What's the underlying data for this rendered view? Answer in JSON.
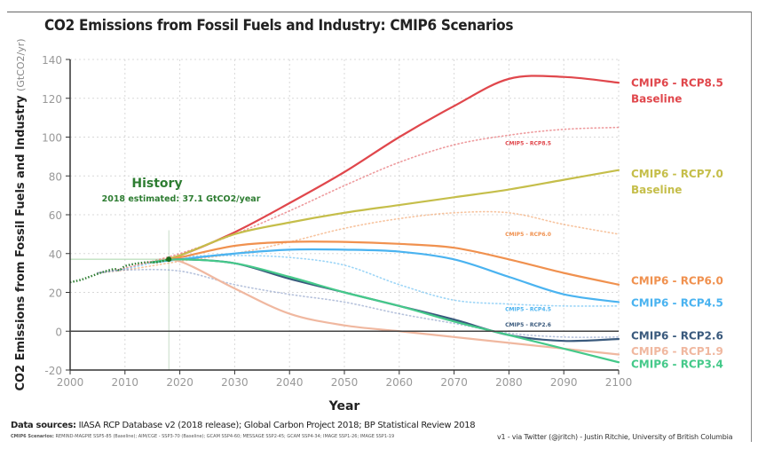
{
  "title": "CO2 Emissions from Fossil Fuels and Industry: CMIP6 Scenarios",
  "footer": {
    "sources_label": "Data sources:",
    "sources_text": " IIASA RCP Database v2 (2018 release); Global Carbon Project 2018; BP Statistical Review 2018",
    "scenarios_label": "CMIP6 Scenarios:",
    "scenarios_text": " REMIND-MAGPIE SSP5-85 (Baseline); AIM/CGE - SSP3-70 (Baseline); GCAM SSP4-60; MESSAGE SSP2-45; GCAM SSP4-34; IMAGE SSP1-26; IMAGE SSP1-19",
    "credit": "v1 - via Twitter (@jritch) - Justin Ritchie, University of British Columbia"
  },
  "chart_data": {
    "type": "line",
    "title": "CO2 Emissions from Fossil Fuels and Industry: CMIP6 Scenarios",
    "xlabel": "Year",
    "ylabel": "CO2 Emissions from Fossil Fuels and Industry",
    "ylabel_unit": "(GtCO2/yr)",
    "xlim": [
      2000,
      2100
    ],
    "ylim": [
      -20,
      140
    ],
    "xticks": [
      2000,
      2010,
      2020,
      2030,
      2040,
      2050,
      2060,
      2070,
      2080,
      2090,
      2100
    ],
    "yticks": [
      -20,
      0,
      20,
      40,
      60,
      80,
      100,
      120,
      140
    ],
    "grid": true,
    "reference_line": {
      "y": 37.1,
      "x": 2018
    },
    "history": {
      "label": "History",
      "annotation": "2018 estimated: 37.1 GtCO2/year",
      "color": "#2e7d32",
      "x": [
        2000,
        2002,
        2004,
        2006,
        2008,
        2009,
        2010,
        2012,
        2014,
        2016,
        2018
      ],
      "y": [
        25.2,
        26.5,
        28.5,
        30.5,
        32.0,
        31.5,
        33.5,
        34.8,
        35.5,
        35.6,
        37.1
      ]
    },
    "series": [
      {
        "name": "CMIP6 - RCP8.5",
        "sublabel": "Baseline",
        "style": "solid",
        "color": "#e0474c",
        "x": [
          2015,
          2020,
          2030,
          2040,
          2050,
          2060,
          2070,
          2080,
          2090,
          2100
        ],
        "y": [
          35.5,
          39,
          51,
          66,
          82,
          100,
          116,
          130,
          131,
          128
        ]
      },
      {
        "name": "CMIP6 - RCP7.0",
        "sublabel": "Baseline",
        "style": "solid",
        "color": "#c5be4a",
        "x": [
          2015,
          2020,
          2030,
          2040,
          2050,
          2060,
          2070,
          2080,
          2090,
          2100
        ],
        "y": [
          35.5,
          39,
          50,
          56,
          61,
          65,
          69,
          73,
          78,
          83
        ]
      },
      {
        "name": "CMIP6 - RCP6.0",
        "sublabel": "",
        "style": "solid",
        "color": "#f0914f",
        "x": [
          2015,
          2020,
          2030,
          2040,
          2050,
          2060,
          2070,
          2080,
          2090,
          2100
        ],
        "y": [
          35.5,
          38,
          44,
          46,
          46,
          45,
          43,
          37,
          30,
          24
        ]
      },
      {
        "name": "CMIP6 - RCP4.5",
        "sublabel": "",
        "style": "solid",
        "color": "#4ab3f0",
        "x": [
          2015,
          2020,
          2030,
          2040,
          2050,
          2060,
          2070,
          2080,
          2090,
          2100
        ],
        "y": [
          35.5,
          37,
          40,
          42,
          42,
          41,
          37,
          28,
          19,
          15
        ]
      },
      {
        "name": "CMIP6 - RCP2.6",
        "sublabel": "",
        "style": "solid",
        "color": "#3a5a7d",
        "x": [
          2015,
          2020,
          2030,
          2040,
          2050,
          2060,
          2070,
          2080,
          2090,
          2100
        ],
        "y": [
          35.5,
          37,
          35,
          27,
          20,
          13,
          6,
          -2,
          -5,
          -4
        ]
      },
      {
        "name": "CMIP6 - RCP1.9",
        "sublabel": "",
        "style": "solid",
        "color": "#f0b8a0",
        "x": [
          2015,
          2020,
          2030,
          2040,
          2050,
          2060,
          2070,
          2080,
          2090,
          2100
        ],
        "y": [
          35.5,
          36,
          22,
          9,
          3,
          0,
          -3,
          -6,
          -9,
          -12
        ]
      },
      {
        "name": "CMIP6 - RCP3.4",
        "sublabel": "",
        "style": "solid",
        "color": "#45c98a",
        "x": [
          2015,
          2020,
          2030,
          2040,
          2050,
          2060,
          2070,
          2080,
          2090,
          2100
        ],
        "y": [
          35.5,
          37,
          35,
          28,
          20,
          13,
          5,
          -2,
          -9,
          -16
        ]
      },
      {
        "name": "CMIP5 - RCP8.5",
        "style": "dotted",
        "color": "#e0474c",
        "x": [
          2005,
          2010,
          2020,
          2030,
          2040,
          2050,
          2060,
          2070,
          2080,
          2090,
          2100
        ],
        "y": [
          30,
          32.5,
          40,
          50,
          62,
          75,
          87,
          96,
          101,
          104,
          105
        ]
      },
      {
        "name": "CMIP5 - RCP6.0",
        "style": "dotted",
        "color": "#f0914f",
        "x": [
          2005,
          2010,
          2020,
          2030,
          2040,
          2050,
          2060,
          2070,
          2080,
          2090,
          2100
        ],
        "y": [
          30,
          31.5,
          36,
          40,
          46,
          53,
          58,
          61,
          61,
          55,
          50
        ]
      },
      {
        "name": "CMIP5 - RCP4.5",
        "style": "dotted",
        "color": "#4ab3f0",
        "x": [
          2005,
          2010,
          2020,
          2030,
          2040,
          2050,
          2060,
          2070,
          2080,
          2090,
          2100
        ],
        "y": [
          30,
          32,
          38,
          39,
          38,
          34,
          24,
          16,
          14,
          13,
          13
        ]
      },
      {
        "name": "CMIP5 - RCP2.6",
        "style": "dotted",
        "color": "#7a8fc0",
        "x": [
          2005,
          2010,
          2020,
          2030,
          2040,
          2050,
          2060,
          2070,
          2080,
          2090,
          2100
        ],
        "y": [
          30,
          31.5,
          31,
          24,
          19,
          15,
          9,
          4,
          -1,
          -3,
          -3
        ]
      }
    ],
    "end_labels": [
      {
        "series": "CMIP6 - RCP8.5",
        "line1": "CMIP6 - RCP8.5",
        "line2": "Baseline",
        "y": 128
      },
      {
        "series": "CMIP6 - RCP7.0",
        "line1": "CMIP6 - RCP7.0",
        "line2": "Baseline",
        "y": 81
      },
      {
        "series": "CMIP6 - RCP6.0",
        "line1": "CMIP6 - RCP6.0",
        "line2": "",
        "y": 26
      },
      {
        "series": "CMIP6 - RCP4.5",
        "line1": "CMIP6 - RCP4.5",
        "line2": "",
        "y": 14.5
      },
      {
        "series": "CMIP6 - RCP2.6",
        "line1": "CMIP6 - RCP2.6",
        "line2": "",
        "y": -2.5
      },
      {
        "series": "CMIP6 - RCP1.9",
        "line1": "CMIP6 - RCP1.9",
        "line2": "",
        "y": -10.5
      },
      {
        "series": "CMIP6 - RCP3.4",
        "line1": "CMIP6 - RCP3.4",
        "line2": "",
        "y": -17
      }
    ],
    "cmip5_labels": [
      {
        "text": "CMIP5 - RCP8.5",
        "x": 2083.5,
        "y": 96,
        "color": "#e0474c"
      },
      {
        "text": "CMIP5 - RCP6.0",
        "x": 2083.5,
        "y": 49,
        "color": "#f0914f"
      },
      {
        "text": "CMIP5 - RCP4.5",
        "x": 2083.5,
        "y": 10.5,
        "color": "#4ab3f0"
      },
      {
        "text": "CMIP5 - RCP2.6",
        "x": 2083.5,
        "y": 2.5,
        "color": "#3a5a7d"
      }
    ]
  }
}
